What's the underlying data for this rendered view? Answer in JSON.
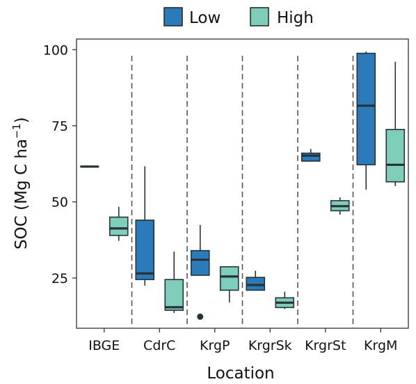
{
  "chart_data": {
    "type": "box",
    "xlabel": "Location",
    "ylabel_main": "SOC (Mg C ha",
    "ylabel_sup": "−1",
    "ylabel_close": ")",
    "yticks": [
      25,
      50,
      75,
      100
    ],
    "ylim": [
      8.5,
      103.5
    ],
    "categories": [
      "IBGE",
      "CdrC",
      "KrgP",
      "KrgrSk",
      "KrgrSt",
      "KrgM"
    ],
    "legend_position": "top",
    "grid": false,
    "series": [
      {
        "name": "Low",
        "color": "#2b7bba",
        "boxes": [
          {
            "whisker_low": 61.6,
            "q1": 61.6,
            "median": 61.6,
            "q3": 61.6,
            "whisker_high": 61.6,
            "outliers": []
          },
          {
            "whisker_low": 22.5,
            "q1": 24.5,
            "median": 26.5,
            "q3": 44,
            "whisker_high": 61.7,
            "outliers": []
          },
          {
            "whisker_low": 25.9,
            "q1": 25.9,
            "median": 31,
            "q3": 34,
            "whisker_high": 42.4,
            "outliers": [
              12.3
            ]
          },
          {
            "whisker_low": 21,
            "q1": 21,
            "median": 22.7,
            "q3": 25.2,
            "whisker_high": 27.4,
            "outliers": []
          },
          {
            "whisker_low": 63.4,
            "q1": 63.4,
            "median": 65.2,
            "q3": 66,
            "whisker_high": 67.4,
            "outliers": []
          },
          {
            "whisker_low": 54,
            "q1": 62.2,
            "median": 81.6,
            "q3": 98.8,
            "whisker_high": 99.4,
            "outliers": []
          }
        ]
      },
      {
        "name": "High",
        "color": "#7fcdbb",
        "boxes": [
          {
            "whisker_low": 37.2,
            "q1": 39,
            "median": 41.3,
            "q3": 45,
            "whisker_high": 48.4,
            "outliers": []
          },
          {
            "whisker_low": 13.5,
            "q1": 14.4,
            "median": 15.4,
            "q3": 24.5,
            "whisker_high": 33.7,
            "outliers": []
          },
          {
            "whisker_low": 17,
            "q1": 21,
            "median": 25.5,
            "q3": 28.7,
            "whisker_high": 28.7,
            "outliers": []
          },
          {
            "whisker_low": 14.8,
            "q1": 15.3,
            "median": 16.9,
            "q3": 18.5,
            "whisker_high": 20.5,
            "outliers": []
          },
          {
            "whisker_low": 45.8,
            "q1": 47.1,
            "median": 48.6,
            "q3": 50.4,
            "whisker_high": 51.5,
            "outliers": []
          },
          {
            "whisker_low": 55.2,
            "q1": 56.6,
            "median": 62.2,
            "q3": 73.8,
            "whisker_high": 96,
            "outliers": []
          }
        ]
      }
    ]
  }
}
